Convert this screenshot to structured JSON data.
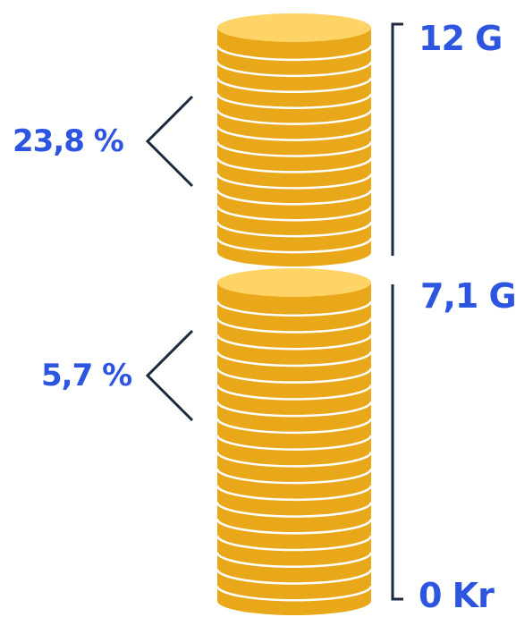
{
  "colors": {
    "coin_side": "#E8A81A",
    "coin_top": "#FFD467",
    "coin_line": "#FFFFFF",
    "label": "#2D55E0",
    "bracket": "#1C2A3D",
    "background": "#FFFFFF"
  },
  "stacks": [
    {
      "id": "upper",
      "percent_label": "23,8 %",
      "coin_count": 14
    },
    {
      "id": "lower",
      "percent_label": "5,7 %",
      "coin_count": 19
    }
  ],
  "scale_labels": {
    "top": "12 G",
    "middle": "7,1 G",
    "bottom": "0 Kr"
  }
}
